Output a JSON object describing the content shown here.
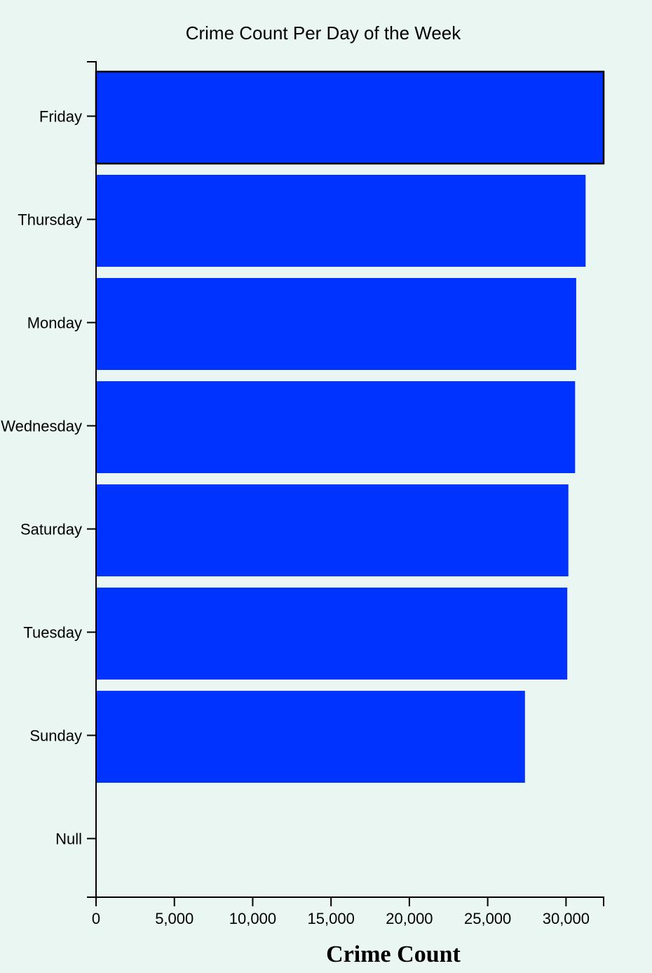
{
  "chart_data": {
    "type": "bar",
    "orientation": "horizontal",
    "title": "Crime Count Per Day of the Week",
    "xlabel": "Crime Count",
    "ylabel": "",
    "categories": [
      "Friday",
      "Thursday",
      "Monday",
      "Wednesday",
      "Saturday",
      "Tuesday",
      "Sunday",
      "Null"
    ],
    "values": [
      32400,
      31250,
      30650,
      30580,
      30150,
      30080,
      27380,
      0
    ],
    "xlim": [
      0,
      32400
    ],
    "xticks": [
      0,
      5000,
      10000,
      15000,
      20000,
      25000,
      30000
    ],
    "xtick_labels": [
      "0",
      "5,000",
      "10,000",
      "15,000",
      "20,000",
      "25,000",
      "30,000"
    ],
    "grid": false,
    "bar_color": "#0033ff",
    "highlighted_category": "Friday",
    "highlight_stroke_color": "#000000"
  }
}
